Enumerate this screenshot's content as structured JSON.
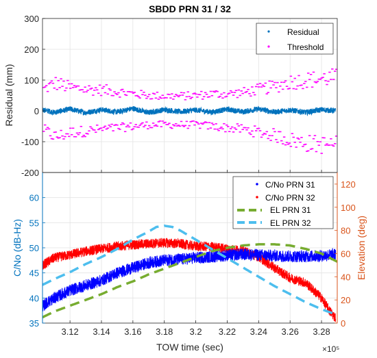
{
  "chart_data": [
    {
      "type": "scatter",
      "title": "SBDD PRN 31 / 32",
      "ylabel": "Residual (mm)",
      "ylim": [
        -200,
        300
      ],
      "yticks": [
        "-200",
        "-100",
        "0",
        "100",
        "200",
        "300"
      ],
      "xlim": [
        310250,
        329000
      ],
      "grid": true,
      "legend_position": "top-right",
      "series": [
        {
          "name": "Residual",
          "color": "#0072BD",
          "x": [
            310250,
            311000,
            312000,
            313000,
            314000,
            315000,
            316000,
            317000,
            318000,
            319000,
            320000,
            321000,
            322000,
            323000,
            324000,
            325000,
            326000,
            327000,
            328000,
            328900
          ],
          "y": [
            4,
            -5,
            6,
            -6,
            4,
            -4,
            8,
            -6,
            4,
            -3,
            3,
            -4,
            5,
            -3,
            6,
            -4,
            3,
            -5,
            4,
            0
          ]
        },
        {
          "name": "Threshold",
          "color": "#FF00FF",
          "x": [
            310250,
            311000,
            312000,
            313000,
            314000,
            315000,
            316000,
            317000,
            318000,
            319000,
            320000,
            321000,
            322000,
            323000,
            324000,
            325000,
            326000,
            327000,
            328000,
            328900
          ],
          "y_upper": [
            70,
            90,
            75,
            70,
            68,
            62,
            55,
            50,
            48,
            48,
            50,
            55,
            55,
            60,
            70,
            80,
            95,
            100,
            105,
            110
          ],
          "y_lower": [
            -60,
            -85,
            -70,
            -65,
            -60,
            -55,
            -50,
            -45,
            -45,
            -45,
            -45,
            -50,
            -55,
            -60,
            -70,
            -80,
            -95,
            -105,
            -110,
            -110
          ]
        }
      ]
    },
    {
      "type": "line",
      "xlabel": "TOW time (sec)",
      "x_multiplier": "×10⁵",
      "xticks": [
        "3.12",
        "3.14",
        "3.16",
        "3.18",
        "3.2",
        "3.22",
        "3.24",
        "3.26",
        "3.28"
      ],
      "xlim": [
        310250,
        329000
      ],
      "ylabel_left": "C/No (dB-Hz)",
      "ylim_left": [
        35,
        65
      ],
      "yticks_left": [
        "35",
        "40",
        "45",
        "50",
        "55",
        "60"
      ],
      "ylabel_right": "Elevation (deg)",
      "ylim_right": [
        0,
        130
      ],
      "yticks_right": [
        "0",
        "20",
        "40",
        "60",
        "80",
        "100",
        "120"
      ],
      "grid": true,
      "legend_position": "top-right",
      "series": [
        {
          "name": "C/No PRN 31",
          "axis": "left",
          "color": "#0000FF",
          "x": [
            310250,
            311000,
            312000,
            313000,
            314000,
            315000,
            316000,
            317000,
            318000,
            319000,
            320000,
            321000,
            322000,
            323000,
            324000,
            325000,
            326000,
            327000,
            328000,
            328900
          ],
          "y": [
            38.5,
            40,
            41.5,
            42.5,
            43.5,
            45,
            46,
            47,
            47.5,
            47.7,
            48,
            48.2,
            48.5,
            48.7,
            48.6,
            48.4,
            48.3,
            48.3,
            48.4,
            48.7
          ]
        },
        {
          "name": "C/No PRN 32",
          "axis": "left",
          "color": "#FF0000",
          "x": [
            310250,
            311000,
            312000,
            313000,
            314000,
            315000,
            316000,
            317000,
            318000,
            319000,
            320000,
            321000,
            322000,
            323000,
            324000,
            325000,
            326000,
            327000,
            328000,
            328500,
            328900
          ],
          "y": [
            46.5,
            48,
            48.6,
            49.3,
            49.8,
            50.3,
            50.6,
            50.8,
            51,
            50.8,
            50.3,
            50.2,
            49.8,
            49.4,
            48.2,
            46,
            44,
            43,
            40,
            37.5,
            36
          ]
        },
        {
          "name": "EL PRN 31",
          "axis": "right",
          "color": "#77AC30",
          "x": [
            310250,
            311000,
            312000,
            313000,
            314000,
            315000,
            316000,
            317000,
            318000,
            319000,
            320000,
            321000,
            322000,
            323000,
            324000,
            325000,
            326000,
            327000,
            328000,
            329000
          ],
          "y": [
            5,
            10,
            15,
            20,
            25,
            31,
            36,
            42,
            47,
            52,
            57,
            62,
            65,
            67,
            68,
            68,
            67,
            64,
            60,
            53
          ]
        },
        {
          "name": "EL PRN 32",
          "axis": "right",
          "color": "#4DBEEE",
          "x": [
            310250,
            311000,
            312000,
            313000,
            314000,
            315000,
            316000,
            317000,
            317500,
            318000,
            318500,
            319000,
            320000,
            321000,
            322000,
            323000,
            324000,
            325000,
            326000,
            327000,
            328000,
            329000
          ],
          "y": [
            33,
            38,
            44,
            51,
            57,
            64,
            72,
            79,
            83,
            84,
            83,
            80,
            72,
            64,
            56,
            48,
            40,
            32,
            25,
            18,
            12,
            7
          ]
        }
      ]
    }
  ]
}
